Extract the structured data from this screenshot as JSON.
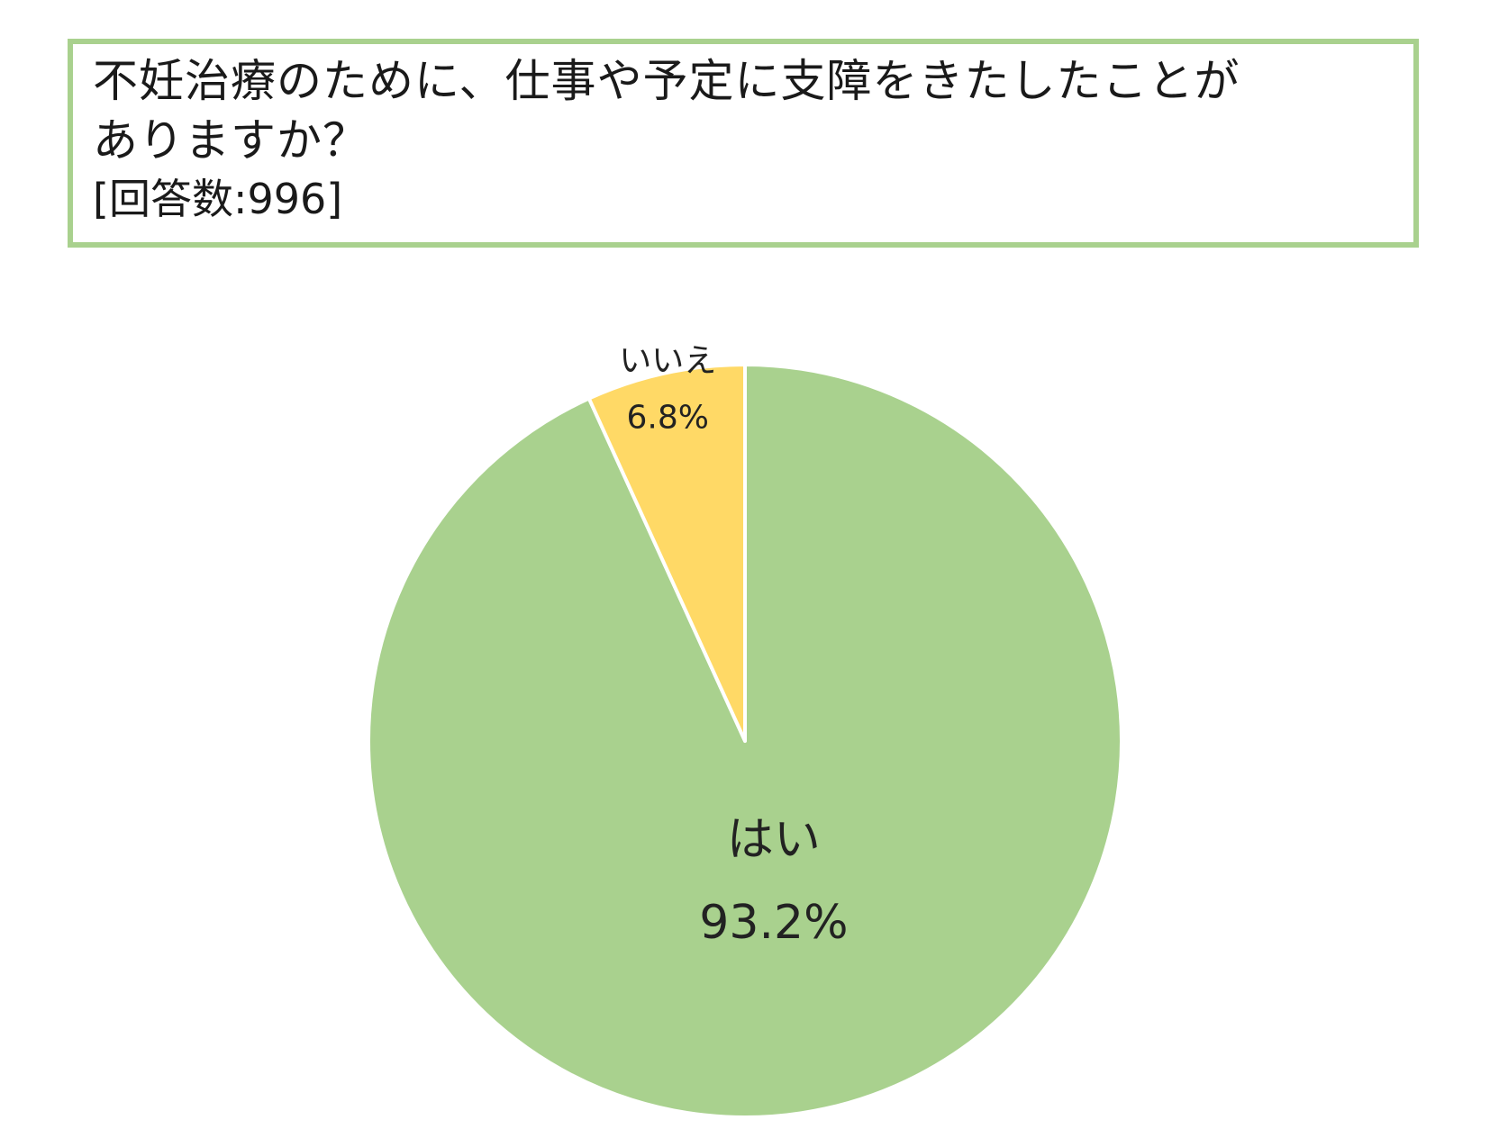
{
  "header": {
    "title_line1": "不妊治療のために、仕事や予定に支障をきたしたことが",
    "title_line2": "ありますか？",
    "subtitle": "[回答数:996]",
    "border_color": "#a9d18e"
  },
  "chart_data": {
    "type": "pie",
    "categories": [
      "はい",
      "いいえ"
    ],
    "values": [
      93.2,
      6.8
    ],
    "labels": [
      "93.2%",
      "6.8%"
    ],
    "colors": [
      "#a9d18e",
      "#ffd966"
    ],
    "start": "top",
    "direction": "clockwise"
  }
}
